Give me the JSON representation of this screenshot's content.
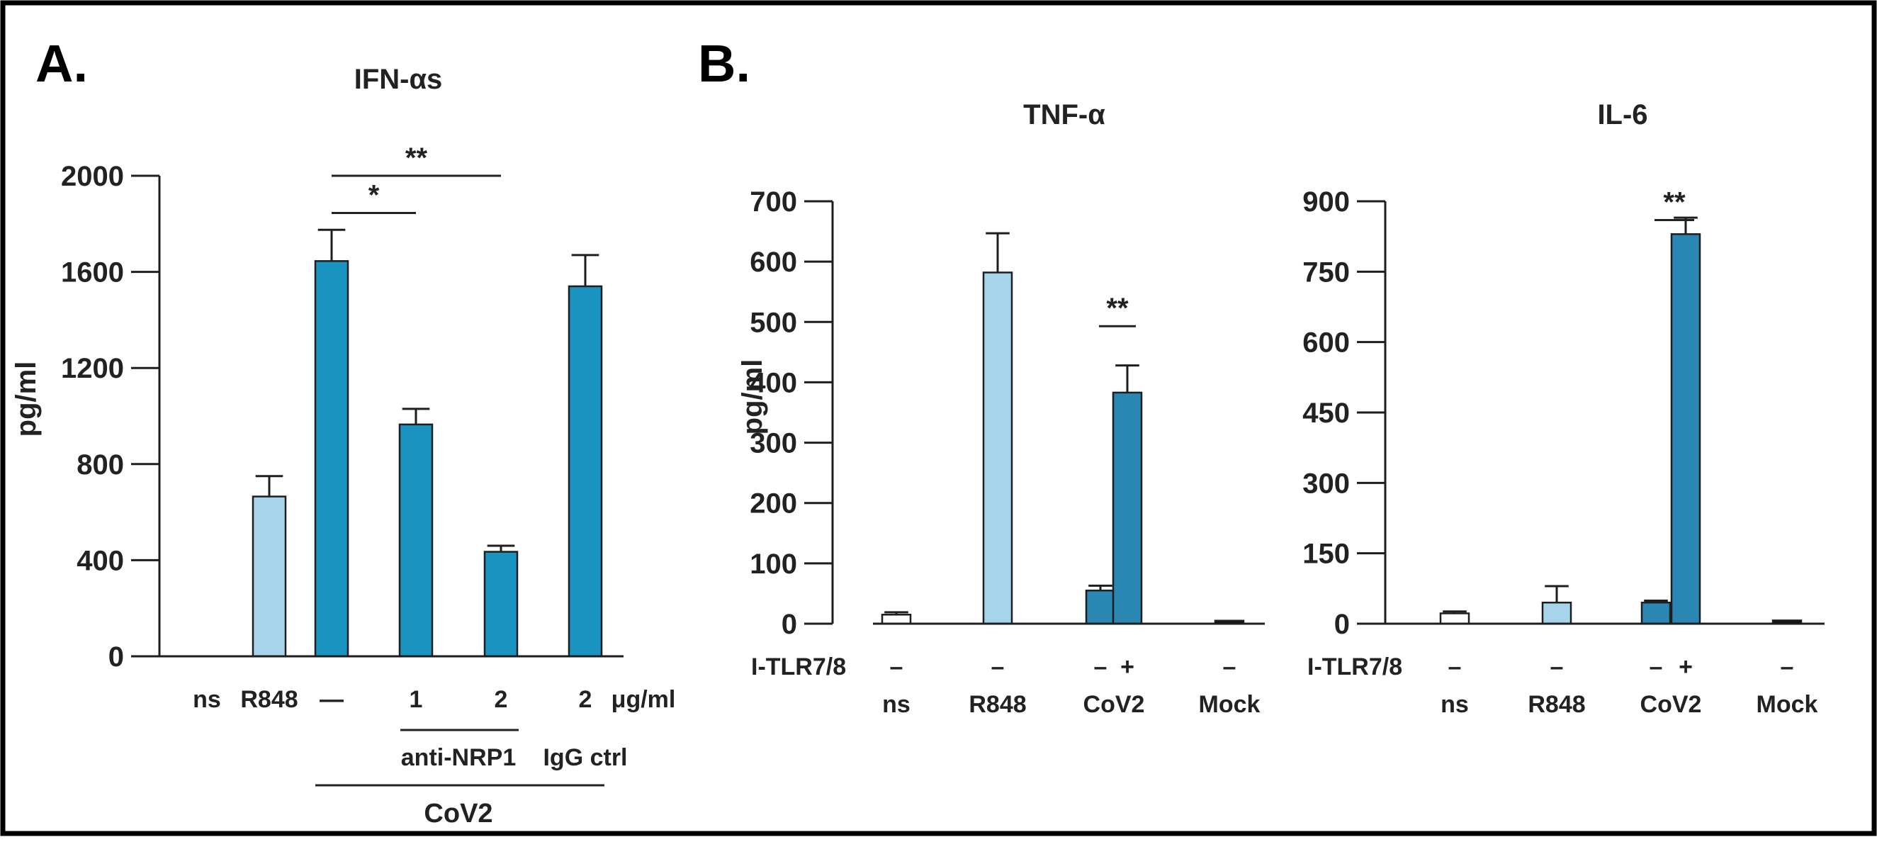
{
  "panels": {
    "a": {
      "label": "A."
    },
    "b": {
      "label": "B."
    }
  },
  "colors": {
    "blue": "#1b93c0",
    "dark_blue": "#2a87b3",
    "light_blue": "#a6d4ea",
    "white": "#ffffff",
    "black": "#111111"
  },
  "chart_data": [
    {
      "type": "bar",
      "title": "IFN-αs",
      "ylabel": "pg/ml",
      "xlabel": "",
      "ylim": [
        0,
        2000
      ],
      "yticks": [
        0,
        400,
        800,
        1200,
        1600,
        2000
      ],
      "yticks_text": [
        "0",
        "400",
        "800",
        "1200",
        "1600",
        "2000"
      ],
      "categories": [
        "ns",
        "R848",
        "—",
        "1",
        "2",
        "2"
      ],
      "unit_label": "μg/ml",
      "values": [
        0,
        665,
        1645,
        965,
        435,
        1540
      ],
      "errors": [
        0,
        85,
        130,
        65,
        25,
        130
      ],
      "colors": [
        "white",
        "light_blue",
        "blue",
        "blue",
        "blue",
        "blue"
      ],
      "group_labels": {
        "anti_nrp1": "anti-NRP1",
        "igg": "IgG ctrl",
        "cov2": "CoV2"
      },
      "significance": [
        {
          "from": 2,
          "to": 3,
          "label": "*"
        },
        {
          "from": 2,
          "to": 4,
          "label": "**"
        }
      ]
    },
    {
      "type": "bar",
      "title": "TNF-α",
      "ylabel": "pg/ml",
      "xlabel": "",
      "ylim": [
        0,
        700
      ],
      "yticks": [
        0,
        100,
        200,
        300,
        400,
        500,
        600,
        700
      ],
      "yticks_text": [
        "0",
        "100",
        "200",
        "300",
        "400",
        "500",
        "600",
        "700"
      ],
      "row_label": "I-TLR7/8",
      "categories": [
        "ns",
        "R848",
        "CoV2",
        "Mock"
      ],
      "bars": [
        {
          "category": 0,
          "itlr": "–",
          "value": 15,
          "error": 4,
          "color": "white"
        },
        {
          "category": 1,
          "itlr": "–",
          "value": 582,
          "error": 65,
          "color": "light_blue"
        },
        {
          "category": 2,
          "itlr": "–",
          "value": 55,
          "error": 8,
          "color": "dark_blue"
        },
        {
          "category": 2,
          "itlr": "+",
          "value": 383,
          "error": 45,
          "color": "dark_blue"
        },
        {
          "category": 3,
          "itlr": "–",
          "value": 5,
          "error": 0,
          "color": "black"
        }
      ],
      "significance": [
        {
          "from": 2,
          "to": 3,
          "label": "**"
        }
      ]
    },
    {
      "type": "bar",
      "title": "IL-6",
      "ylabel": "",
      "xlabel": "",
      "ylim": [
        0,
        900
      ],
      "yticks": [
        0,
        150,
        300,
        450,
        600,
        750,
        900
      ],
      "yticks_text": [
        "0",
        "150",
        "300",
        "450",
        "600",
        "750",
        "900"
      ],
      "row_label": "I-TLR7/8",
      "categories": [
        "ns",
        "R848",
        "CoV2",
        "Mock"
      ],
      "bars": [
        {
          "category": 0,
          "itlr": "–",
          "value": 22,
          "error": 4,
          "color": "white"
        },
        {
          "category": 1,
          "itlr": "–",
          "value": 45,
          "error": 35,
          "color": "light_blue"
        },
        {
          "category": 2,
          "itlr": "–",
          "value": 45,
          "error": 4,
          "color": "dark_blue"
        },
        {
          "category": 2,
          "itlr": "+",
          "value": 830,
          "error": 35,
          "color": "dark_blue"
        },
        {
          "category": 3,
          "itlr": "–",
          "value": 7,
          "error": 0,
          "color": "black"
        }
      ],
      "significance": [
        {
          "from": 2,
          "to": 3,
          "label": "**"
        }
      ]
    }
  ]
}
